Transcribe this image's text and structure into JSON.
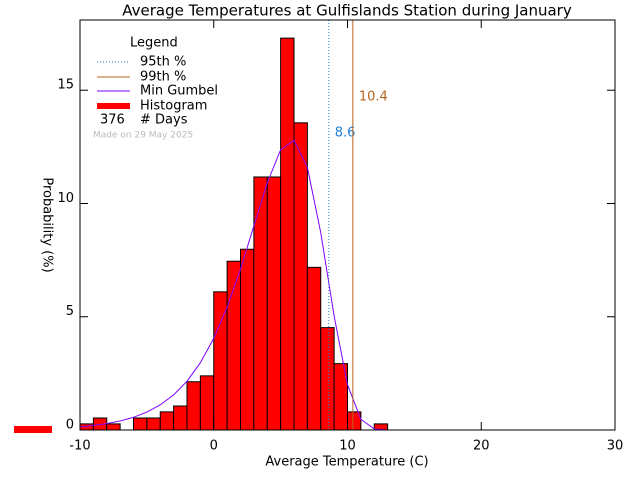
{
  "chart_data": {
    "type": "histogram",
    "title": "Average Temperatures at Gulfislands Station during January",
    "xlabel": "Average Temperature (C)",
    "ylabel": "Probability (%)",
    "bins": [
      -10,
      -9,
      -8,
      -7,
      -6,
      -5,
      -4,
      -3,
      -2,
      -1,
      0,
      1,
      2,
      3,
      4,
      5,
      6,
      7,
      8,
      9,
      10,
      11,
      12,
      13
    ],
    "values": [
      0.27,
      0.53,
      0.27,
      0,
      0.53,
      0.53,
      0.8,
      1.06,
      2.13,
      2.39,
      6.1,
      7.45,
      7.98,
      11.17,
      11.17,
      17.3,
      13.56,
      7.18,
      4.52,
      2.93,
      0.8,
      0,
      0.27
    ],
    "color": "#ff0000",
    "xlim": [
      -10,
      30
    ],
    "ylim": [
      0,
      18.1
    ],
    "xticks": [
      -10,
      0,
      10,
      20,
      30
    ],
    "yticks": [
      0,
      5,
      10,
      15
    ],
    "legend_title": "Legend",
    "histogram_label": "Histogram",
    "curve": {
      "name": "Min Gumbel",
      "color": "#7f00ff",
      "x": [
        -10,
        -9,
        -8,
        -7,
        -6,
        -5,
        -4,
        -3,
        -2,
        -1,
        0,
        1,
        2,
        3,
        4,
        5,
        6,
        7,
        8,
        9,
        10,
        11,
        12,
        13
      ],
      "values": [
        0.14,
        0.2,
        0.28,
        0.4,
        0.56,
        0.79,
        1.11,
        1.55,
        2.15,
        2.97,
        4.05,
        5.42,
        7.1,
        9.01,
        10.91,
        12.37,
        12.79,
        11.59,
        8.71,
        5.03,
        2.0,
        0.47,
        0.05,
        0
      ]
    },
    "percentiles": [
      {
        "name": "95th %",
        "value": 8.6,
        "color": "#1f7fd6",
        "dash": true
      },
      {
        "name": "99th %",
        "value": 10.4,
        "color": "#b5651d",
        "dash": false
      }
    ],
    "days": 376,
    "days_label": "# Days",
    "note": "Made on 29 May 2025"
  }
}
